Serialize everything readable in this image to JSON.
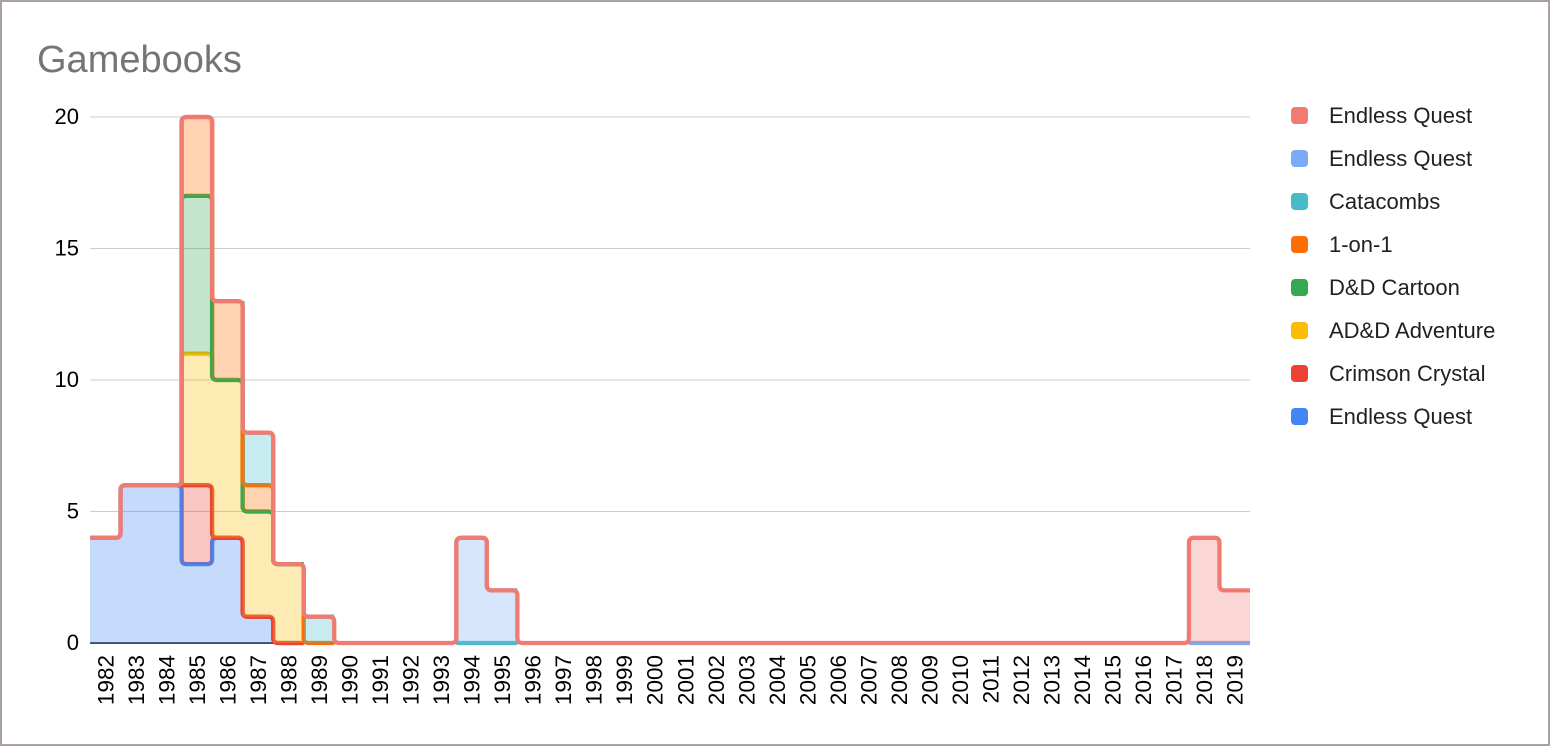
{
  "widget": {
    "background": "#ffffff",
    "border_color": "#a99fa4"
  },
  "title": "Gamebooks",
  "title_color": "#757575",
  "legend": {
    "position": "right",
    "items": [
      {
        "label": "Endless Quest",
        "color": "#f07b72"
      },
      {
        "label": "Endless Quest",
        "color": "#7baaf7"
      },
      {
        "label": "Catacombs",
        "color": "#46bdc6"
      },
      {
        "label": "1-on-1",
        "color": "#ff6d01"
      },
      {
        "label": "D&D Cartoon",
        "color": "#34a853"
      },
      {
        "label": "AD&D Adventure",
        "color": "#fbbc04"
      },
      {
        "label": "Crimson Crystal",
        "color": "#ea4335"
      },
      {
        "label": "Endless Quest",
        "color": "#4285f4"
      }
    ]
  },
  "chart_data": {
    "type": "area",
    "variant": "stepped-stacked",
    "title": "Gamebooks",
    "xlabel": "",
    "ylabel": "",
    "ylim": [
      0,
      20
    ],
    "yticks": [
      0,
      5,
      10,
      15,
      20
    ],
    "grid": true,
    "gridline_color": "#cccccc",
    "baseline_color": "#333333",
    "axis_label_color": "#000000",
    "fill_opacity": 0.3,
    "legend_position": "right",
    "categories": [
      "1982",
      "1983",
      "1984",
      "1985",
      "1986",
      "1987",
      "1988",
      "1989",
      "1990",
      "1991",
      "1992",
      "1993",
      "1994",
      "1995",
      "1996",
      "1997",
      "1998",
      "1999",
      "2000",
      "2001",
      "2002",
      "2003",
      "2004",
      "2005",
      "2006",
      "2007",
      "2008",
      "2009",
      "2010",
      "2011",
      "2012",
      "2013",
      "2014",
      "2015",
      "2016",
      "2017",
      "2018",
      "2019"
    ],
    "series": [
      {
        "name": "Endless Quest",
        "color": "#4285f4",
        "values": [
          4,
          6,
          6,
          3,
          4,
          1,
          0,
          null,
          null,
          null,
          null,
          null,
          null,
          null,
          null,
          null,
          null,
          null,
          null,
          null,
          null,
          null,
          null,
          null,
          null,
          null,
          null,
          null,
          null,
          null,
          null,
          null,
          null,
          null,
          null,
          null,
          null,
          null
        ]
      },
      {
        "name": "Crimson Crystal",
        "color": "#ea4335",
        "values": [
          null,
          null,
          null,
          3,
          0,
          0,
          0,
          null,
          null,
          null,
          null,
          null,
          null,
          null,
          null,
          null,
          null,
          null,
          null,
          null,
          null,
          null,
          null,
          null,
          null,
          null,
          null,
          null,
          null,
          null,
          null,
          null,
          null,
          null,
          null,
          null,
          null,
          null
        ]
      },
      {
        "name": "AD&D Adventure",
        "color": "#fbbc04",
        "values": [
          null,
          null,
          null,
          5,
          6,
          4,
          3,
          null,
          null,
          null,
          null,
          null,
          null,
          null,
          null,
          null,
          null,
          null,
          null,
          null,
          null,
          null,
          null,
          null,
          null,
          null,
          null,
          null,
          null,
          null,
          null,
          null,
          null,
          null,
          null,
          null,
          null,
          null
        ]
      },
      {
        "name": "D&D Cartoon",
        "color": "#34a853",
        "values": [
          null,
          null,
          null,
          6,
          0,
          0,
          0,
          null,
          null,
          null,
          null,
          null,
          null,
          null,
          null,
          null,
          null,
          null,
          null,
          null,
          null,
          null,
          null,
          null,
          null,
          null,
          null,
          null,
          null,
          null,
          null,
          null,
          null,
          null,
          null,
          null,
          null,
          null
        ]
      },
      {
        "name": "1-on-1",
        "color": "#ff6d01",
        "values": [
          null,
          null,
          null,
          3,
          3,
          1,
          0,
          0,
          null,
          null,
          null,
          null,
          null,
          null,
          null,
          null,
          null,
          null,
          null,
          null,
          null,
          null,
          null,
          null,
          null,
          null,
          null,
          null,
          null,
          null,
          null,
          null,
          null,
          null,
          null,
          null,
          null,
          null
        ]
      },
      {
        "name": "Catacombs",
        "color": "#46bdc6",
        "values": [
          null,
          null,
          null,
          null,
          null,
          2,
          0,
          1,
          null,
          null,
          null,
          null,
          0,
          0,
          null,
          null,
          null,
          null,
          null,
          null,
          null,
          null,
          null,
          null,
          null,
          null,
          null,
          null,
          null,
          null,
          null,
          null,
          null,
          null,
          null,
          null,
          null,
          null
        ]
      },
      {
        "name": "Endless Quest",
        "color": "#7baaf7",
        "values": [
          null,
          null,
          null,
          null,
          null,
          null,
          null,
          null,
          null,
          null,
          null,
          null,
          4,
          2,
          null,
          null,
          null,
          null,
          null,
          null,
          null,
          null,
          null,
          null,
          null,
          null,
          null,
          null,
          null,
          null,
          null,
          null,
          null,
          null,
          null,
          null,
          0,
          0
        ]
      },
      {
        "name": "Endless Quest",
        "color": "#f07b72",
        "values": [
          0,
          0,
          0,
          0,
          0,
          0,
          0,
          0,
          0,
          0,
          0,
          0,
          0,
          0,
          0,
          0,
          0,
          0,
          0,
          0,
          0,
          0,
          0,
          0,
          0,
          0,
          0,
          0,
          0,
          0,
          0,
          0,
          0,
          0,
          0,
          0,
          4,
          2
        ]
      }
    ]
  }
}
